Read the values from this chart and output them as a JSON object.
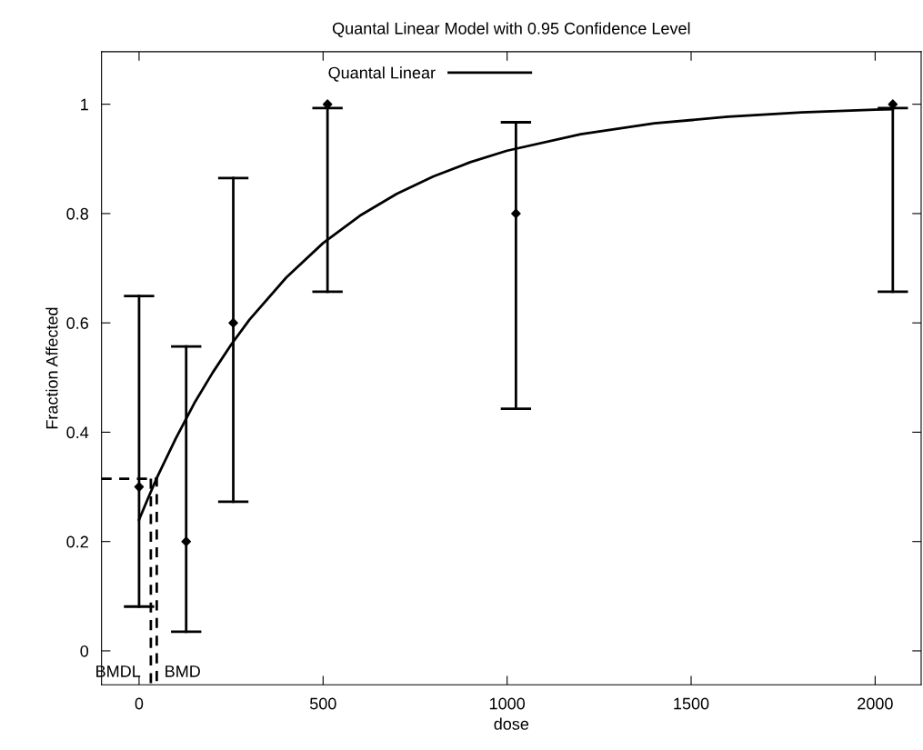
{
  "chart_data": {
    "type": "scatter",
    "title": "Quantal Linear Model with 0.95 Confidence Level",
    "xlabel": "dose",
    "ylabel": "Fraction Affected",
    "x": [
      0,
      128,
      256,
      512,
      1024,
      2048
    ],
    "series": [
      {
        "color": "#000000",
        "marker": "diamond",
        "values": [
          0.3,
          0.2,
          0.6,
          1.0,
          0.8,
          1.0
        ],
        "errors": [
          [
            0.081,
            0.649
          ],
          [
            0.035,
            0.557
          ],
          [
            0.273,
            0.865
          ],
          [
            0.657,
            0.993
          ],
          [
            0.443,
            0.967
          ],
          [
            0.657,
            0.993
          ]
        ]
      },
      {
        "type": "line",
        "name": "Quantal Linear",
        "color": "#000000",
        "line_style": "solid",
        "x": [
          0,
          25,
          50,
          100,
          150,
          200,
          250,
          300,
          400,
          500,
          600,
          700,
          800,
          900,
          1000,
          1200,
          1400,
          1600,
          1800,
          2000,
          2048
        ],
        "values": [
          0.24,
          0.28,
          0.319,
          0.389,
          0.453,
          0.509,
          0.56,
          0.606,
          0.683,
          0.746,
          0.796,
          0.836,
          0.868,
          0.894,
          0.915,
          0.945,
          0.965,
          0.977,
          0.985,
          0.99,
          0.991
        ]
      },
      {
        "type": "line",
        "color": "#000000",
        "line_style": "dashed",
        "x": [
          -102,
          48,
          48
        ],
        "values": [
          0.315,
          0.315,
          -0.062
        ]
      },
      {
        "type": "line",
        "color": "#000000",
        "line_style": "dashed",
        "x": [
          32,
          32
        ],
        "values": [
          0.315,
          -0.062
        ]
      }
    ],
    "annotations": [
      {
        "text": "BMDL",
        "x": 32,
        "y": -0.04
      },
      {
        "text": "BMD",
        "x": 48,
        "y": -0.04
      }
    ],
    "xlim": [
      -102,
      2125
    ],
    "ylim": [
      -0.062,
      1.096
    ],
    "xticks": [
      0,
      500,
      1000,
      1500,
      2000
    ],
    "yticks": [
      0,
      0.2,
      0.4,
      0.6,
      0.8,
      1
    ],
    "grid": false,
    "legend": "top"
  }
}
